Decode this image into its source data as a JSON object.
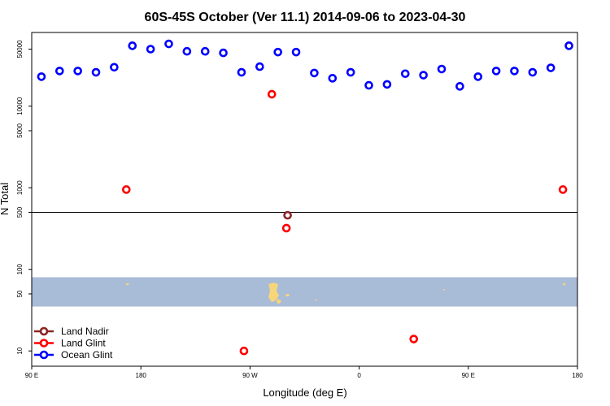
{
  "chart_data": {
    "type": "scatter",
    "title": "60S-45S October (Ver 11.1)   2014-09-06 to 2023-04-30",
    "xlabel": "Longitude (deg E)",
    "ylabel": "N Total",
    "x_scale": "linear",
    "y_scale": "log",
    "xlim": [
      90,
      540
    ],
    "ylim": [
      6.5,
      80000
    ],
    "x_ticks": [
      {
        "value": 90,
        "label": "90 E"
      },
      {
        "value": 180,
        "label": "180"
      },
      {
        "value": 270,
        "label": "90 W"
      },
      {
        "value": 360,
        "label": "0"
      },
      {
        "value": 450,
        "label": "90 E"
      },
      {
        "value": 540,
        "label": "180"
      }
    ],
    "y_ticks": [
      {
        "value": 10,
        "label": "10"
      },
      {
        "value": 50,
        "label": "50"
      },
      {
        "value": 100,
        "label": "100"
      },
      {
        "value": 500,
        "label": "500"
      },
      {
        "value": 1000,
        "label": "1000"
      },
      {
        "value": 5000,
        "label": "5000"
      },
      {
        "value": 10000,
        "label": "10000"
      },
      {
        "value": 50000,
        "label": "50000"
      }
    ],
    "reference_line_y": 500,
    "legend": {
      "position": "bottom-left",
      "entries": [
        {
          "name": "Land Nadir",
          "color": "#8b2323"
        },
        {
          "name": "Land Glint",
          "color": "#ff0000"
        },
        {
          "name": "Ocean Glint",
          "color": "#0000ff"
        }
      ]
    },
    "series": [
      {
        "name": "Ocean Glint",
        "color": "#0000ff",
        "points": [
          [
            98,
            23000
          ],
          [
            113,
            27000
          ],
          [
            128,
            27000
          ],
          [
            143,
            26000
          ],
          [
            158,
            30000
          ],
          [
            173,
            55000
          ],
          [
            188,
            50000
          ],
          [
            203,
            58000
          ],
          [
            218,
            47000
          ],
          [
            233,
            47000
          ],
          [
            248,
            45000
          ],
          [
            263,
            26000
          ],
          [
            278,
            30500
          ],
          [
            293,
            46000
          ],
          [
            308,
            46000
          ],
          [
            323,
            25500
          ],
          [
            338,
            22000
          ],
          [
            353,
            26000
          ],
          [
            368,
            18000
          ],
          [
            383,
            18500
          ],
          [
            398,
            25000
          ],
          [
            413,
            24000
          ],
          [
            428,
            28500
          ],
          [
            443,
            17500
          ],
          [
            458,
            23000
          ],
          [
            473,
            27000
          ],
          [
            488,
            27000
          ],
          [
            503,
            26000
          ],
          [
            518,
            29500
          ],
          [
            533,
            55000
          ]
        ]
      },
      {
        "name": "Land Glint",
        "color": "#ff0000",
        "points": [
          [
            168,
            950
          ],
          [
            288,
            14000
          ],
          [
            300,
            320
          ],
          [
            265,
            10
          ],
          [
            405,
            14
          ],
          [
            528,
            950
          ]
        ]
      },
      {
        "name": "Land Nadir",
        "color": "#8b2323",
        "points": [
          [
            301,
            460
          ]
        ]
      }
    ],
    "background_map": {
      "band_y_range": [
        35,
        80
      ],
      "ocean_color": "#a8bcd8",
      "land_color": "#f7d57a"
    }
  }
}
